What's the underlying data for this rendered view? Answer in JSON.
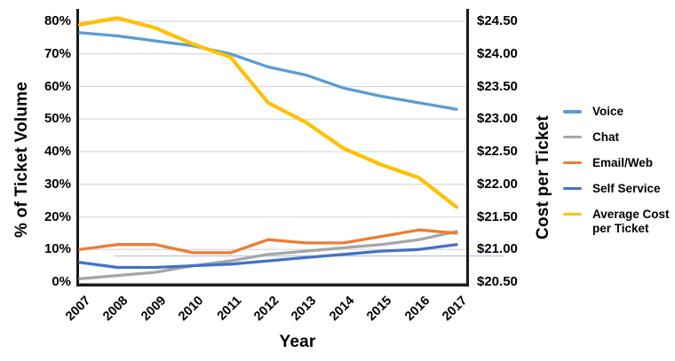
{
  "chart_data": {
    "type": "line",
    "title": "",
    "x_label": "Year",
    "x_categories": [
      "2007",
      "2008",
      "2009",
      "2010",
      "2011",
      "2012",
      "2013",
      "2014",
      "2015",
      "2016",
      "2017"
    ],
    "left_axis": {
      "title": "% of Ticket Volume",
      "ticks": [
        "80%",
        "70%",
        "60%",
        "50%",
        "40%",
        "30%",
        "20%",
        "10%",
        "0%"
      ],
      "range_pct": [
        0,
        84
      ],
      "tick_step_pct": 10
    },
    "right_axis": {
      "title": "Cost per Ticket",
      "ticks": [
        "$24.50",
        "$24.00",
        "$23.50",
        "$23.00",
        "$22.50",
        "$22.00",
        "$21.50",
        "$21.00",
        "$20.50"
      ],
      "range_dollars": [
        20.5,
        24.7
      ],
      "tick_step_dollars": 0.5
    },
    "grid": true,
    "gridline_color": "#d9d9d9",
    "axis_color": "#1a1a1a",
    "artifact_faint_line_pct": 8,
    "artifact_faint_line_color": "#bcc9e6",
    "legend_position": "right",
    "series": [
      {
        "name": "Voice",
        "axis": "left",
        "color": "#5B9BD5",
        "values": [
          76.5,
          75.5,
          74,
          72.5,
          70,
          66,
          63.5,
          59.5,
          57,
          55,
          53
        ]
      },
      {
        "name": "Chat",
        "axis": "left",
        "color": "#A6A6A6",
        "values": [
          1,
          2,
          3,
          5,
          6.5,
          8.5,
          9.5,
          10.5,
          11.5,
          13,
          15.5
        ]
      },
      {
        "name": "Email/Web",
        "axis": "left",
        "color": "#ED7D31",
        "values": [
          10,
          11.5,
          11.5,
          9,
          9,
          13,
          12,
          12,
          14,
          16,
          15
        ]
      },
      {
        "name": "Self Service",
        "axis": "left",
        "color": "#4472C4",
        "values": [
          6,
          4.5,
          4.5,
          5,
          5.5,
          6.5,
          7.5,
          8.5,
          9.5,
          10,
          11.5
        ]
      },
      {
        "name": "Average Cost per Ticket",
        "axis": "right",
        "color": "#FFC000",
        "values": [
          24.45,
          24.55,
          24.4,
          24.15,
          23.95,
          23.25,
          22.95,
          22.55,
          22.3,
          22.1,
          21.65
        ]
      }
    ]
  }
}
